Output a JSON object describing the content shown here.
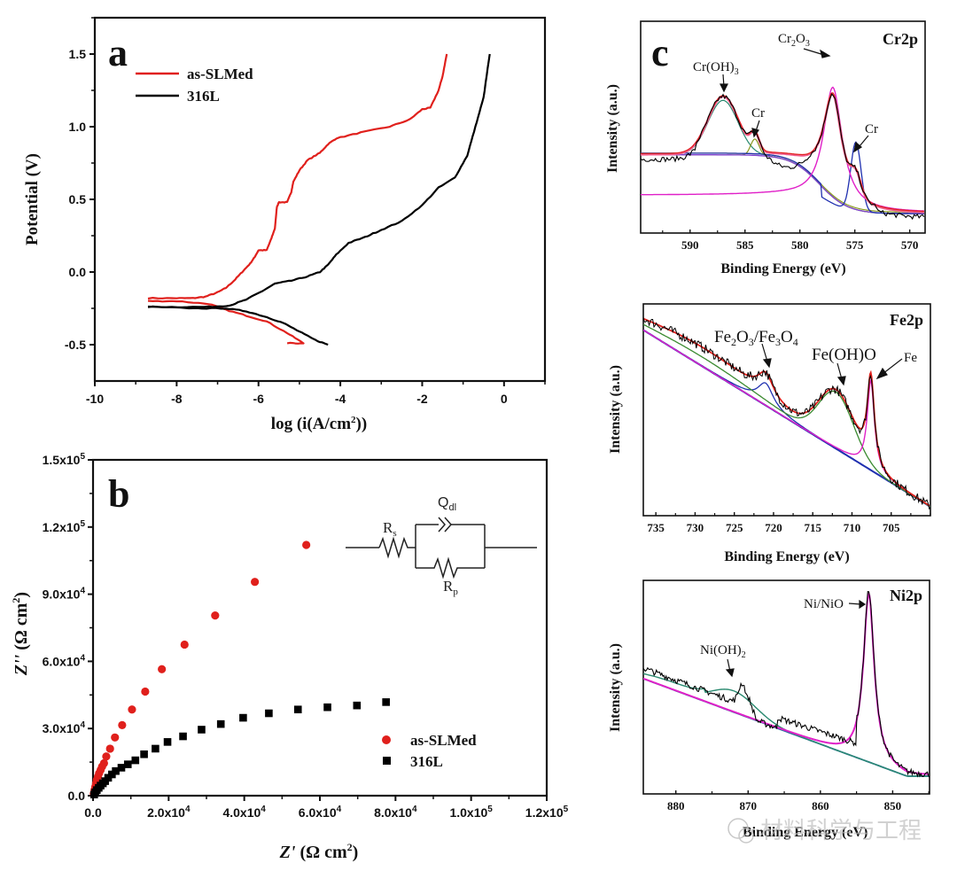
{
  "figure": {
    "watermark": "材料科学与工程",
    "colors": {
      "red": "#e0201c",
      "black": "#000000",
      "magenta": "#e020c8",
      "pink": "#f06090",
      "blue": "#2030b0",
      "green": "#3a8a30",
      "olive": "#8a9a20",
      "teal": "#2a8a70",
      "purple": "#8040d0"
    }
  },
  "chart_data": [
    {
      "id": "a",
      "panel_label": "a",
      "type": "line",
      "title": "",
      "xlabel": "log (i(A/cm2))",
      "xlabel_main": "log (i(A/cm",
      "xlabel_sup": "2",
      "xlabel_end": "))",
      "ylabel": "Potential (V)",
      "xlim": [
        -10,
        1
      ],
      "ylim": [
        -0.75,
        1.75
      ],
      "xticks": [
        -10,
        -8,
        -6,
        -4,
        -2,
        0
      ],
      "xtick_labels": [
        "-10",
        "-8",
        "-6",
        "-4",
        "-2",
        "0"
      ],
      "yticks": [
        -0.5,
        0.0,
        0.5,
        1.0,
        1.5
      ],
      "ytick_labels": [
        "-0.5",
        "0.0",
        "0.5",
        "1.0",
        "1.5"
      ],
      "legend": {
        "position": "top-left",
        "entries": [
          "as-SLMed",
          "316L"
        ]
      },
      "series": [
        {
          "name": "as-SLMed",
          "color": "#e0201c",
          "anodic": [
            [
              -8.7,
              -0.18
            ],
            [
              -8.0,
              -0.18
            ],
            [
              -7.6,
              -0.18
            ],
            [
              -7.3,
              -0.17
            ],
            [
              -7.0,
              -0.14
            ],
            [
              -6.8,
              -0.11
            ],
            [
              -6.6,
              -0.06
            ],
            [
              -6.4,
              0.0
            ],
            [
              -6.2,
              0.06
            ],
            [
              -6.1,
              0.1
            ],
            [
              -6.0,
              0.15
            ],
            [
              -5.8,
              0.15
            ],
            [
              -5.7,
              0.22
            ],
            [
              -5.6,
              0.3
            ],
            [
              -5.55,
              0.45
            ],
            [
              -5.5,
              0.48
            ],
            [
              -5.3,
              0.48
            ],
            [
              -5.2,
              0.55
            ],
            [
              -5.15,
              0.62
            ],
            [
              -5.0,
              0.7
            ],
            [
              -4.8,
              0.77
            ],
            [
              -4.5,
              0.82
            ],
            [
              -4.3,
              0.88
            ],
            [
              -4.1,
              0.92
            ],
            [
              -3.5,
              0.96
            ],
            [
              -2.8,
              1.0
            ],
            [
              -2.3,
              1.05
            ],
            [
              -2.0,
              1.12
            ],
            [
              -1.8,
              1.13
            ],
            [
              -1.6,
              1.25
            ],
            [
              -1.5,
              1.35
            ],
            [
              -1.4,
              1.5
            ]
          ],
          "cathodic": [
            [
              -8.7,
              -0.2
            ],
            [
              -8.0,
              -0.2
            ],
            [
              -7.2,
              -0.22
            ],
            [
              -6.8,
              -0.26
            ],
            [
              -6.3,
              -0.3
            ],
            [
              -5.8,
              -0.34
            ],
            [
              -5.3,
              -0.42
            ],
            [
              -4.9,
              -0.49
            ],
            [
              -5.3,
              -0.49
            ]
          ]
        },
        {
          "name": "316L",
          "color": "#000000",
          "anodic": [
            [
              -8.7,
              -0.24
            ],
            [
              -8.0,
              -0.24
            ],
            [
              -7.2,
              -0.24
            ],
            [
              -6.7,
              -0.23
            ],
            [
              -6.3,
              -0.19
            ],
            [
              -5.9,
              -0.13
            ],
            [
              -5.6,
              -0.08
            ],
            [
              -5.2,
              -0.06
            ],
            [
              -4.8,
              -0.03
            ],
            [
              -4.5,
              0.0
            ],
            [
              -4.3,
              0.05
            ],
            [
              -4.1,
              0.12
            ],
            [
              -3.8,
              0.2
            ],
            [
              -3.4,
              0.24
            ],
            [
              -3.0,
              0.29
            ],
            [
              -2.5,
              0.35
            ],
            [
              -2.0,
              0.46
            ],
            [
              -1.6,
              0.58
            ],
            [
              -1.2,
              0.65
            ],
            [
              -0.9,
              0.8
            ],
            [
              -0.7,
              1.0
            ],
            [
              -0.5,
              1.2
            ],
            [
              -0.35,
              1.5
            ]
          ],
          "cathodic": [
            [
              -8.7,
              -0.24
            ],
            [
              -7.5,
              -0.25
            ],
            [
              -6.8,
              -0.25
            ],
            [
              -6.3,
              -0.27
            ],
            [
              -5.8,
              -0.31
            ],
            [
              -5.4,
              -0.35
            ],
            [
              -5.0,
              -0.41
            ],
            [
              -4.6,
              -0.47
            ],
            [
              -4.3,
              -0.5
            ]
          ]
        }
      ]
    },
    {
      "id": "b",
      "panel_label": "b",
      "type": "scatter",
      "title": "",
      "xlabel": "Z' (Ω cm2)",
      "xlabel_z": "Z'",
      "xlabel_rest": " (Ω cm",
      "ylabel": "Z'' (Ω cm2)",
      "ylabel_z": "Z''",
      "ylabel_rest": " (Ω cm",
      "xlim": [
        0,
        120000
      ],
      "ylim": [
        0,
        150000
      ],
      "xticks": [
        0,
        20000,
        40000,
        60000,
        80000,
        100000,
        120000
      ],
      "xtick_labels": [
        "0.0",
        "2.0x10^4",
        "4.0x10^4",
        "6.0x10^4",
        "8.0x10^4",
        "1.0x10^5",
        "1.2x10^5"
      ],
      "yticks": [
        0,
        30000,
        60000,
        90000,
        120000,
        150000
      ],
      "ytick_labels": [
        "0.0",
        "3.0x10^4",
        "6.0x10^4",
        "9.0x10^4",
        "1.2x10^5",
        "1.5x10^5"
      ],
      "legend": {
        "position": "bottom-right",
        "entries": [
          "as-SLMed",
          "316L"
        ]
      },
      "circuit": {
        "labels": {
          "rs": "R",
          "rs_sub": "s",
          "q": "Q",
          "q_sub": "dl",
          "rp": "R",
          "rp_sub": "p"
        }
      },
      "series": [
        {
          "name": "as-SLMed",
          "marker": "circle",
          "color": "#e0201c",
          "points": [
            [
              200,
              1000
            ],
            [
              400,
              2500
            ],
            [
              600,
              4000
            ],
            [
              800,
              5500
            ],
            [
              1000,
              7000
            ],
            [
              1300,
              8500
            ],
            [
              1600,
              10000
            ],
            [
              2000,
              11500
            ],
            [
              2400,
              13000
            ],
            [
              2900,
              14500
            ],
            [
              3500,
              17500
            ],
            [
              4500,
              21000
            ],
            [
              5800,
              26000
            ],
            [
              7700,
              31500
            ],
            [
              10300,
              38500
            ],
            [
              13800,
              46500
            ],
            [
              18200,
              56500
            ],
            [
              24200,
              67500
            ],
            [
              32300,
              80500
            ],
            [
              42800,
              95500
            ],
            [
              56400,
              112000
            ]
          ]
        },
        {
          "name": "316L",
          "marker": "square",
          "color": "#000000",
          "points": [
            [
              300,
              500
            ],
            [
              600,
              1500
            ],
            [
              1000,
              2500
            ],
            [
              1500,
              3500
            ],
            [
              2000,
              4500
            ],
            [
              2600,
              5500
            ],
            [
              3200,
              6500
            ],
            [
              4000,
              8000
            ],
            [
              5000,
              9500
            ],
            [
              6000,
              11000
            ],
            [
              7500,
              12500
            ],
            [
              9200,
              14000
            ],
            [
              11200,
              15800
            ],
            [
              13500,
              18500
            ],
            [
              16500,
              21000
            ],
            [
              19700,
              24000
            ],
            [
              23800,
              26500
            ],
            [
              28700,
              29500
            ],
            [
              33800,
              32000
            ],
            [
              39700,
              34800
            ],
            [
              46500,
              36800
            ],
            [
              54200,
              38500
            ],
            [
              62000,
              39500
            ],
            [
              69800,
              40300
            ],
            [
              77500,
              41800
            ]
          ]
        }
      ]
    },
    {
      "id": "c-cr2p",
      "panel_label": "c",
      "type": "line",
      "title": "Cr2p",
      "xlabel": "Binding Energy (eV)",
      "ylabel": "Intensity (a.u.)",
      "xlim": [
        594.5,
        568.6
      ],
      "xticks": [
        590,
        585,
        580,
        575,
        570
      ],
      "xtick_labels": [
        "590",
        "585",
        "580",
        "575",
        "570"
      ],
      "annotations": [
        {
          "text": "Cr(OH)3",
          "main": "Cr(OH)",
          "sub": "3",
          "peak": 587.0
        },
        {
          "text": "Cr",
          "main": "Cr",
          "sub": "",
          "peak": 584.0
        },
        {
          "text": "Cr2O3",
          "main": "Cr",
          "sub": "2",
          "main2": "O",
          "sub2": "3",
          "peak": 577.0
        },
        {
          "text": "Cr",
          "main": "Cr",
          "sub": "",
          "peak": 575.0
        }
      ],
      "components": [
        {
          "name": "background",
          "color": "#2030b0"
        },
        {
          "name": "Cr(OH)3",
          "color": "#3a8a70",
          "center": 587.0,
          "height": 0.55
        },
        {
          "name": "Cr-metal-1",
          "color": "#8a9a20",
          "center": 584.1,
          "height": 0.12
        },
        {
          "name": "Cr2O3",
          "color": "#e020c8",
          "center": 577.0,
          "height": 1.0
        },
        {
          "name": "Cr-metal-2",
          "color": "#2030b0",
          "center": 574.9,
          "height": 0.35
        },
        {
          "name": "envelope",
          "color": "#e0201c"
        },
        {
          "name": "raw",
          "color": "#000000"
        }
      ]
    },
    {
      "id": "c-fe2p",
      "panel_label": "",
      "type": "line",
      "title": "Fe2p",
      "xlabel": "Binding Energy (eV)",
      "ylabel": "Intensity (a.u.)",
      "xlim": [
        736.6,
        700.0
      ],
      "xticks": [
        735,
        730,
        725,
        720,
        715,
        710,
        705
      ],
      "xtick_labels": [
        "735",
        "730",
        "725",
        "720",
        "715",
        "710",
        "705"
      ],
      "annotations": [
        {
          "text": "Fe2O3/Fe3O4",
          "peak": 721.0
        },
        {
          "text": "Fe(OH)O",
          "peak": 712.0
        },
        {
          "text": "Fe",
          "peak": 707.5
        }
      ],
      "components": [
        {
          "name": "background",
          "color": "#2030b0"
        },
        {
          "name": "Fe2O3/Fe3O4",
          "color": "#2030b0",
          "center": 721.0,
          "height": 0.22
        },
        {
          "name": "Fe(OH)O",
          "color": "#3a8a30",
          "center": 712.0,
          "height": 0.48
        },
        {
          "name": "Fe-metal",
          "color": "#e020c8",
          "center": 707.6,
          "height": 0.6
        },
        {
          "name": "envelope",
          "color": "#e0201c"
        },
        {
          "name": "raw",
          "color": "#000000"
        }
      ]
    },
    {
      "id": "c-ni2p",
      "panel_label": "",
      "type": "line",
      "title": "Ni2p",
      "xlabel": "Binding Energy (eV)",
      "ylabel": "Intensity (a.u.)",
      "xlim": [
        884.5,
        844.9
      ],
      "xticks": [
        880,
        870,
        860,
        850
      ],
      "xtick_labels": [
        "880",
        "870",
        "860",
        "850"
      ],
      "annotations": [
        {
          "text": "Ni(OH)2",
          "main": "Ni(OH)",
          "sub": "2",
          "peak": 872.0
        },
        {
          "text": "Ni/NiO",
          "peak": 853.3
        }
      ],
      "components": [
        {
          "name": "background",
          "color": "#2a6aa0"
        },
        {
          "name": "Ni(OH)2",
          "color": "#2a8a70",
          "center": 872.0,
          "height": 0.22
        },
        {
          "name": "Ni/NiO",
          "color": "#e020c8",
          "center": 853.3,
          "height": 1.0
        },
        {
          "name": "raw",
          "color": "#000000"
        }
      ]
    }
  ]
}
